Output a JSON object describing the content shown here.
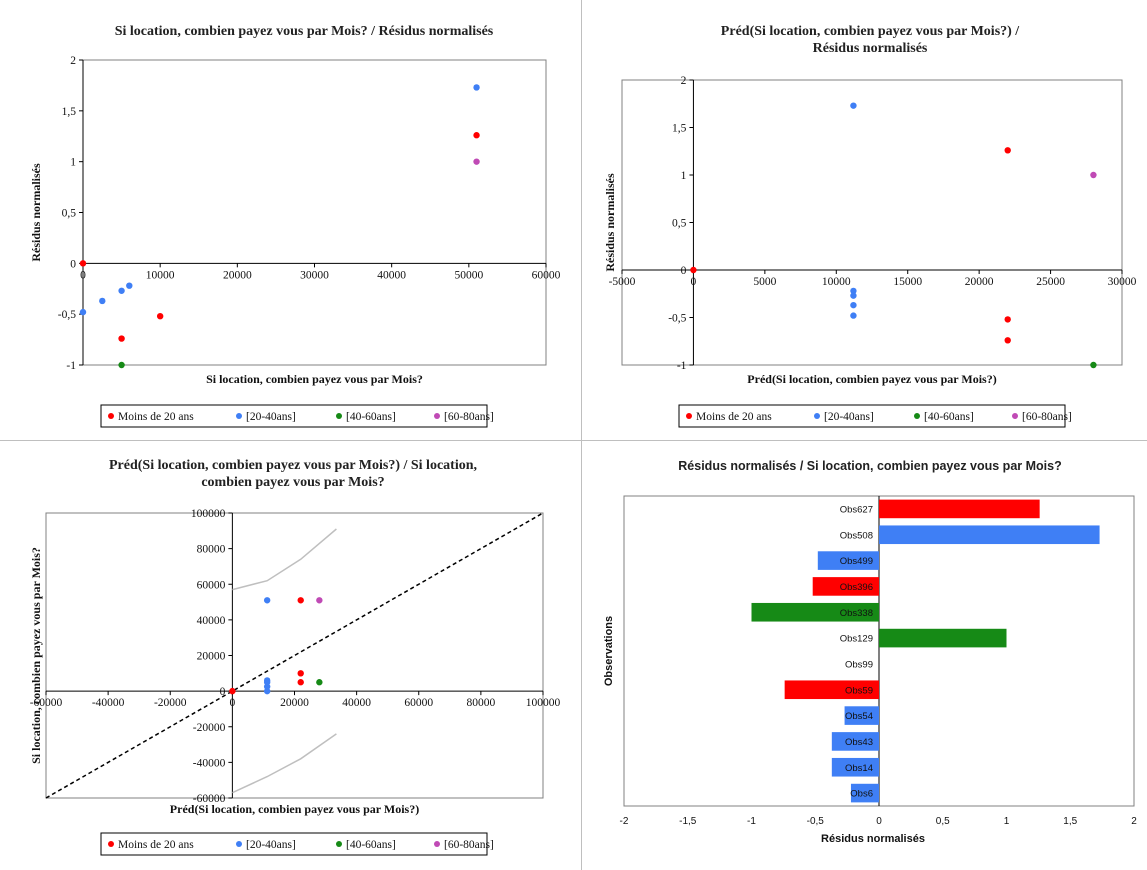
{
  "colors": {
    "moins20": "#ff0000",
    "a20_40": "#3f7ff5",
    "a40_60": "#168a16",
    "a60_80": "#c04ab5"
  },
  "legend": [
    "Moins de 20 ans",
    "[20-40ans]",
    "[40-60ans]",
    "[60-80ans]"
  ],
  "chart_data": [
    {
      "type": "scatter",
      "title": "Si location, combien payez vous par Mois? / Résidus normalisés",
      "xlabel": "Si location, combien payez vous par Mois?",
      "ylabel": "Résidus normalisés",
      "xlim": [
        0,
        60000
      ],
      "ylim": [
        -1,
        2
      ],
      "xticks": [
        "0",
        "10000",
        "20000",
        "30000",
        "40000",
        "50000",
        "60000"
      ],
      "yticks": [
        "-1",
        "-0,5",
        "0",
        "0,5",
        "1",
        "1,5",
        "2"
      ],
      "legend_position": "bottom",
      "series": [
        {
          "name": "Moins de 20 ans",
          "points": [
            [
              0,
              0
            ],
            [
              5000,
              -0.74
            ],
            [
              10000,
              -0.52
            ],
            [
              51000,
              1.26
            ]
          ]
        },
        {
          "name": "[20-40ans]",
          "points": [
            [
              0,
              -0.48
            ],
            [
              2500,
              -0.37
            ],
            [
              5000,
              -0.27
            ],
            [
              6000,
              -0.22
            ],
            [
              51000,
              1.73
            ]
          ]
        },
        {
          "name": "[40-60ans]",
          "points": [
            [
              5000,
              -1.0
            ]
          ]
        },
        {
          "name": "[60-80ans]",
          "points": [
            [
              51000,
              1.0
            ]
          ]
        }
      ]
    },
    {
      "type": "scatter",
      "title": "Préd(Si location, combien payez vous par Mois?) / Résidus normalisés",
      "xlabel": "Préd(Si location, combien payez vous par Mois?)",
      "ylabel": "Résidus normalisés",
      "xlim": [
        -5000,
        30000
      ],
      "ylim": [
        -1,
        2
      ],
      "xticks": [
        "-5000",
        "0",
        "5000",
        "10000",
        "15000",
        "20000",
        "25000",
        "30000"
      ],
      "yticks": [
        "-1",
        "-0,5",
        "0",
        "0,5",
        "1",
        "1,5",
        "2"
      ],
      "legend_position": "bottom",
      "series": [
        {
          "name": "Moins de 20 ans",
          "points": [
            [
              0,
              0
            ],
            [
              22000,
              1.26
            ],
            [
              22000,
              -0.52
            ],
            [
              22000,
              -0.74
            ]
          ]
        },
        {
          "name": "[20-40ans]",
          "points": [
            [
              11200,
              1.73
            ],
            [
              11200,
              -0.22
            ],
            [
              11200,
              -0.27
            ],
            [
              11200,
              -0.37
            ],
            [
              11200,
              -0.48
            ]
          ]
        },
        {
          "name": "[40-60ans]",
          "points": [
            [
              28000,
              -1.0
            ]
          ]
        },
        {
          "name": "[60-80ans]",
          "points": [
            [
              28000,
              1.0
            ]
          ]
        }
      ]
    },
    {
      "type": "scatter",
      "title": "Préd(Si location, combien payez vous par Mois?) / Si location, combien payez vous par Mois?",
      "xlabel": "Préd(Si location, combien payez vous par Mois?)",
      "ylabel": "Si location, combien payez vous par Mois?",
      "xlim": [
        -60000,
        100000
      ],
      "ylim": [
        -60000,
        100000
      ],
      "xticks": [
        "-60000",
        "-40000",
        "-20000",
        "0",
        "20000",
        "40000",
        "60000",
        "80000",
        "100000"
      ],
      "yticks": [
        "-60000",
        "-40000",
        "-20000",
        "0",
        "20000",
        "40000",
        "60000",
        "80000",
        "100000"
      ],
      "legend_position": "bottom",
      "series": [
        {
          "name": "Moins de 20 ans",
          "points": [
            [
              0,
              0
            ],
            [
              22000,
              51000
            ],
            [
              22000,
              10000
            ],
            [
              22000,
              5000
            ]
          ]
        },
        {
          "name": "[20-40ans]",
          "points": [
            [
              11200,
              51000
            ],
            [
              11200,
              6000
            ],
            [
              11200,
              5000
            ],
            [
              11200,
              2500
            ],
            [
              11200,
              0
            ]
          ]
        },
        {
          "name": "[40-60ans]",
          "points": [
            [
              28000,
              5000
            ]
          ]
        },
        {
          "name": "[60-80ans]",
          "points": [
            [
              28000,
              51000
            ]
          ]
        }
      ],
      "reference_line": [
        [
          -60000,
          -60000
        ],
        [
          100000,
          100000
        ]
      ],
      "confidence_upper": [
        [
          0,
          57000
        ],
        [
          11200,
          62000
        ],
        [
          22000,
          74000
        ],
        [
          33500,
          91000
        ]
      ],
      "confidence_lower": [
        [
          0,
          -57000
        ],
        [
          11200,
          -48000
        ],
        [
          22000,
          -38000
        ],
        [
          33500,
          -24000
        ]
      ]
    },
    {
      "type": "bar",
      "orientation": "horizontal",
      "title": "Résidus normalisés / Si location, combien payez vous par Mois?",
      "xlabel": "Résidus normalisés",
      "ylabel": "Observations",
      "xlim": [
        -2,
        2
      ],
      "xticks": [
        "-2",
        "-1,5",
        "-1",
        "-0,5",
        "0",
        "0,5",
        "1",
        "1,5",
        "2"
      ],
      "categories": [
        "Obs627",
        "Obs508",
        "Obs499",
        "Obs396",
        "Obs338",
        "Obs129",
        "Obs99",
        "Obs59",
        "Obs54",
        "Obs43",
        "Obs14",
        "Obs6"
      ],
      "values": [
        1.26,
        1.73,
        -0.48,
        -0.52,
        -1.0,
        1.0,
        0.0,
        -0.74,
        -0.27,
        -0.37,
        -0.37,
        -0.22
      ],
      "groups": [
        "Moins de 20 ans",
        "[20-40ans]",
        "[20-40ans]",
        "Moins de 20 ans",
        "[40-60ans]",
        "[40-60ans]",
        "Moins de 20 ans",
        "Moins de 20 ans",
        "[20-40ans]",
        "[20-40ans]",
        "[20-40ans]",
        "[20-40ans]"
      ]
    }
  ]
}
